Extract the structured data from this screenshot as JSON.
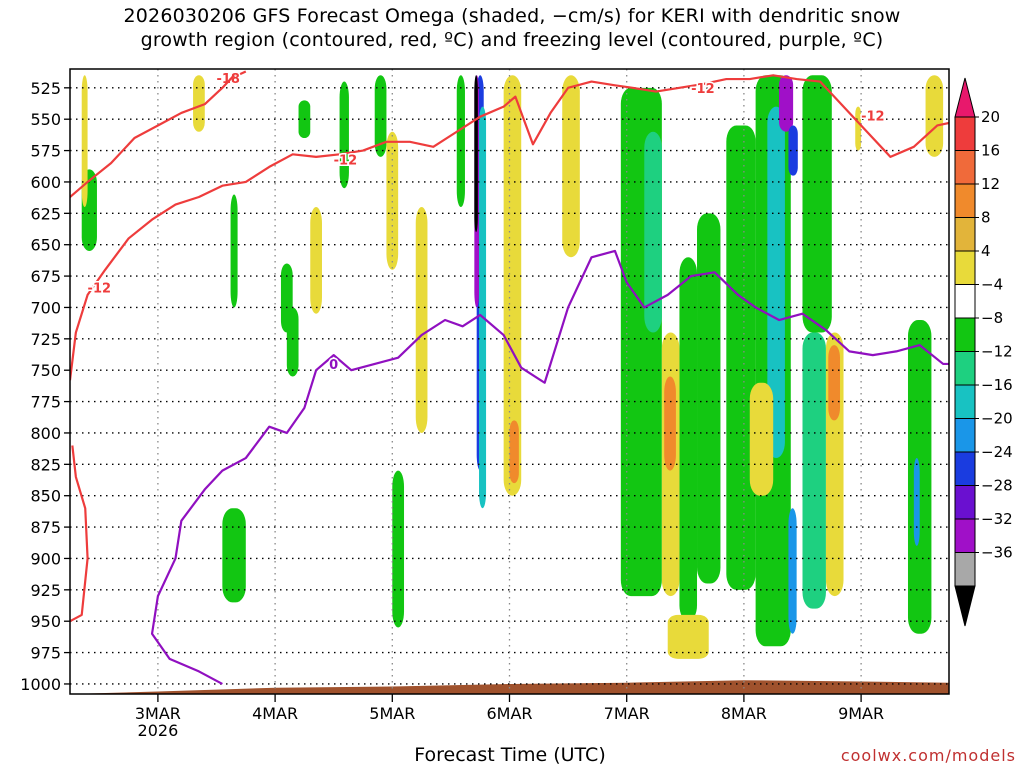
{
  "title": {
    "line1": "2026030206 GFS Forecast Omega (shaded, −cm/s) for KERI with dendritic snow",
    "line2": "growth region (contoured, red, ºC) and freezing level (contoured, purple, ºC)"
  },
  "chart_data": {
    "type": "heatmap",
    "title": "2026030206 GFS Forecast Omega (shaded, −cm/s) for KERI with dendritic snow growth region (contoured, red, ºC) and freezing level (contoured, purple, ºC)",
    "xlabel": "Forecast Time (UTC)",
    "ylabel": "",
    "x_range_days": [
      2.25,
      9.75
    ],
    "x_ticks": [
      {
        "day": 3,
        "label": "3MAR",
        "sublabel": "2026"
      },
      {
        "day": 4,
        "label": "4MAR",
        "sublabel": ""
      },
      {
        "day": 5,
        "label": "5MAR",
        "sublabel": ""
      },
      {
        "day": 6,
        "label": "6MAR",
        "sublabel": ""
      },
      {
        "day": 7,
        "label": "7MAR",
        "sublabel": ""
      },
      {
        "day": 8,
        "label": "8MAR",
        "sublabel": ""
      },
      {
        "day": 9,
        "label": "9MAR",
        "sublabel": ""
      }
    ],
    "y_range_hpa": [
      1008,
      510
    ],
    "y_ticks": [
      525,
      550,
      575,
      600,
      625,
      650,
      675,
      700,
      725,
      750,
      775,
      800,
      825,
      850,
      875,
      900,
      925,
      950,
      975,
      1000
    ],
    "colorbar": {
      "labels": [
        "20",
        "16",
        "12",
        "8",
        "4",
        "−4",
        "−8",
        "−12",
        "−16",
        "−20",
        "−24",
        "−28",
        "−32",
        "−36"
      ],
      "bins": [
        {
          "min": 20,
          "max": 24,
          "color": "#e8186c"
        },
        {
          "min": 16,
          "max": 20,
          "color": "#ee3c3c"
        },
        {
          "min": 12,
          "max": 16,
          "color": "#f06a3a"
        },
        {
          "min": 8,
          "max": 12,
          "color": "#f08a2c"
        },
        {
          "min": 4,
          "max": 8,
          "color": "#e2b43a"
        },
        {
          "min": 4,
          "max": 4,
          "color": "#e8da3a"
        },
        {
          "min": -4,
          "max": 4,
          "color": "#ffffff"
        },
        {
          "min": -8,
          "max": -4,
          "color": "#12c612"
        },
        {
          "min": -12,
          "max": -8,
          "color": "#1ed080"
        },
        {
          "min": -16,
          "max": -12,
          "color": "#18c2c2"
        },
        {
          "min": -20,
          "max": -16,
          "color": "#1a96e8"
        },
        {
          "min": -24,
          "max": -20,
          "color": "#1a3ce0"
        },
        {
          "min": -28,
          "max": -24,
          "color": "#6a10d0"
        },
        {
          "min": -32,
          "max": -28,
          "color": "#a010c8"
        },
        {
          "min": -36,
          "max": -32,
          "color": "#a8a8a8"
        }
      ],
      "under_color": "#000000",
      "over_color": "#e8186c"
    },
    "omega_patches": [
      {
        "color": "#12c612",
        "x": [
          2.35,
          2.48
        ],
        "p": [
          590,
          655
        ]
      },
      {
        "color": "#12c612",
        "x": [
          3.55,
          3.75
        ],
        "p": [
          860,
          935
        ]
      },
      {
        "color": "#12c612",
        "x": [
          3.62,
          3.68
        ],
        "p": [
          610,
          700
        ]
      },
      {
        "color": "#12c612",
        "x": [
          4.05,
          4.15
        ],
        "p": [
          665,
          720
        ]
      },
      {
        "color": "#12c612",
        "x": [
          4.1,
          4.2
        ],
        "p": [
          700,
          755
        ]
      },
      {
        "color": "#12c612",
        "x": [
          4.2,
          4.3
        ],
        "p": [
          535,
          565
        ]
      },
      {
        "color": "#12c612",
        "x": [
          4.55,
          4.63
        ],
        "p": [
          520,
          605
        ]
      },
      {
        "color": "#12c612",
        "x": [
          4.85,
          4.95
        ],
        "p": [
          515,
          580
        ]
      },
      {
        "color": "#12c612",
        "x": [
          5.0,
          5.1
        ],
        "p": [
          830,
          955
        ]
      },
      {
        "color": "#12c612",
        "x": [
          5.55,
          5.62
        ],
        "p": [
          515,
          620
        ]
      },
      {
        "color": "#12c612",
        "x": [
          6.95,
          7.3
        ],
        "p": [
          525,
          930
        ]
      },
      {
        "color": "#1ed080",
        "x": [
          7.15,
          7.3
        ],
        "p": [
          560,
          720
        ]
      },
      {
        "color": "#12c612",
        "x": [
          7.45,
          7.6
        ],
        "p": [
          660,
          950
        ]
      },
      {
        "color": "#12c612",
        "x": [
          7.6,
          7.8
        ],
        "p": [
          625,
          920
        ]
      },
      {
        "color": "#12c612",
        "x": [
          7.85,
          8.1
        ],
        "p": [
          555,
          925
        ]
      },
      {
        "color": "#12c612",
        "x": [
          8.1,
          8.4
        ],
        "p": [
          515,
          970
        ]
      },
      {
        "color": "#18c2c2",
        "x": [
          8.2,
          8.35
        ],
        "p": [
          540,
          820
        ]
      },
      {
        "color": "#1a96e8",
        "x": [
          8.38,
          8.45
        ],
        "p": [
          860,
          960
        ]
      },
      {
        "color": "#12c612",
        "x": [
          8.5,
          8.75
        ],
        "p": [
          515,
          720
        ]
      },
      {
        "color": "#1ed080",
        "x": [
          8.5,
          8.7
        ],
        "p": [
          720,
          940
        ]
      },
      {
        "color": "#12c612",
        "x": [
          9.4,
          9.6
        ],
        "p": [
          710,
          960
        ]
      },
      {
        "color": "#1a96e8",
        "x": [
          9.45,
          9.5
        ],
        "p": [
          820,
          890
        ]
      },
      {
        "color": "#a010c8",
        "x": [
          8.3,
          8.42
        ],
        "p": [
          515,
          560
        ]
      },
      {
        "color": "#1a3ce0",
        "x": [
          8.38,
          8.46
        ],
        "p": [
          555,
          595
        ]
      },
      {
        "color": "#1a3ce0",
        "x": [
          5.72,
          5.78
        ],
        "p": [
          515,
          830
        ]
      },
      {
        "color": "#a010c8",
        "x": [
          5.7,
          5.74
        ],
        "p": [
          515,
          700
        ]
      },
      {
        "color": "#000000",
        "x": [
          5.7,
          5.73
        ],
        "p": [
          515,
          640
        ]
      },
      {
        "color": "#18c2c2",
        "x": [
          5.74,
          5.8
        ],
        "p": [
          540,
          860
        ]
      },
      {
        "color": "#e8da3a",
        "x": [
          3.3,
          3.4
        ],
        "p": [
          515,
          560
        ]
      },
      {
        "color": "#e8da3a",
        "x": [
          4.3,
          4.4
        ],
        "p": [
          620,
          705
        ]
      },
      {
        "color": "#e8da3a",
        "x": [
          4.95,
          5.05
        ],
        "p": [
          560,
          670
        ]
      },
      {
        "color": "#e8da3a",
        "x": [
          5.2,
          5.3
        ],
        "p": [
          620,
          800
        ]
      },
      {
        "color": "#e8da3a",
        "x": [
          5.95,
          6.1
        ],
        "p": [
          515,
          850
        ]
      },
      {
        "color": "#f08a2c",
        "x": [
          6.0,
          6.08
        ],
        "p": [
          790,
          840
        ]
      },
      {
        "color": "#e8da3a",
        "x": [
          6.45,
          6.6
        ],
        "p": [
          515,
          660
        ]
      },
      {
        "color": "#e8da3a",
        "x": [
          7.3,
          7.45
        ],
        "p": [
          720,
          930
        ]
      },
      {
        "color": "#f08a2c",
        "x": [
          7.32,
          7.42
        ],
        "p": [
          755,
          830
        ]
      },
      {
        "color": "#e8da3a",
        "x": [
          7.35,
          7.7
        ],
        "p": [
          945,
          980
        ]
      },
      {
        "color": "#e8da3a",
        "x": [
          8.05,
          8.25
        ],
        "p": [
          760,
          850
        ]
      },
      {
        "color": "#e8da3a",
        "x": [
          8.7,
          8.85
        ],
        "p": [
          720,
          930
        ]
      },
      {
        "color": "#f08a2c",
        "x": [
          8.72,
          8.82
        ],
        "p": [
          730,
          790
        ]
      },
      {
        "color": "#e8da3a",
        "x": [
          9.55,
          9.7
        ],
        "p": [
          515,
          580
        ]
      },
      {
        "color": "#e8da3a",
        "x": [
          8.95,
          9.0
        ],
        "p": [
          540,
          575
        ]
      },
      {
        "color": "#e8da3a",
        "x": [
          2.35,
          2.4
        ],
        "p": [
          515,
          620
        ]
      }
    ],
    "dendritic_growth_contours": [
      {
        "value": -18,
        "label": "-18",
        "label_at": [
          3.6,
          517
        ],
        "points": [
          [
            3.6,
            519
          ],
          [
            3.68,
            515
          ],
          [
            3.75,
            512
          ]
        ]
      },
      {
        "value": -12,
        "label": "-12",
        "label_at": [
          2.5,
          684
        ],
        "points": [
          [
            2.25,
            758
          ],
          [
            2.3,
            720
          ],
          [
            2.4,
            690
          ],
          [
            2.55,
            670
          ],
          [
            2.75,
            645
          ],
          [
            2.95,
            630
          ],
          [
            3.15,
            618
          ],
          [
            3.35,
            612
          ],
          [
            3.55,
            603
          ],
          [
            3.75,
            600
          ],
          [
            3.95,
            588
          ],
          [
            4.15,
            578
          ],
          [
            4.35,
            580
          ],
          [
            4.55,
            578
          ],
          [
            4.75,
            575
          ],
          [
            4.95,
            568
          ],
          [
            5.15,
            568
          ],
          [
            5.35,
            572
          ],
          [
            5.55,
            560
          ],
          [
            5.75,
            548
          ],
          [
            5.95,
            540
          ],
          [
            6.05,
            532
          ],
          [
            6.2,
            570
          ],
          [
            6.35,
            545
          ],
          [
            6.5,
            525
          ],
          [
            6.7,
            520
          ],
          [
            6.9,
            523
          ],
          [
            7.05,
            525
          ],
          [
            7.25,
            528
          ],
          [
            7.45,
            525
          ],
          [
            7.65,
            522
          ],
          [
            7.85,
            518
          ],
          [
            8.05,
            518
          ],
          [
            8.25,
            515
          ],
          [
            8.45,
            518
          ],
          [
            8.65,
            520
          ],
          [
            8.85,
            540
          ],
          [
            9.05,
            560
          ],
          [
            9.25,
            580
          ],
          [
            9.45,
            572
          ],
          [
            9.65,
            555
          ],
          [
            9.75,
            553
          ]
        ]
      },
      {
        "value": -12,
        "label": "-12",
        "label_at": [
          4.6,
          582
        ],
        "points": [
          [
            2.25,
            612
          ],
          [
            2.4,
            600
          ],
          [
            2.6,
            585
          ],
          [
            2.8,
            565
          ],
          [
            3.0,
            555
          ],
          [
            3.2,
            545
          ],
          [
            3.4,
            538
          ],
          [
            3.55,
            525
          ],
          [
            3.65,
            515
          ]
        ]
      },
      {
        "value": -12,
        "label": "-12",
        "label_at": [
          7.65,
          525
        ],
        "points": []
      },
      {
        "value": -12,
        "label": "-12",
        "label_at": [
          9.1,
          547
        ],
        "points": []
      },
      {
        "value": -12,
        "label": "",
        "label_at": [
          2.3,
          900
        ],
        "points": [
          [
            2.25,
            950
          ],
          [
            2.35,
            945
          ],
          [
            2.4,
            900
          ],
          [
            2.38,
            860
          ],
          [
            2.3,
            835
          ],
          [
            2.27,
            810
          ]
        ]
      }
    ],
    "freezing_level_contours": [
      {
        "value": 0,
        "label": "0",
        "label_at": [
          4.5,
          745
        ],
        "points": [
          [
            3.55,
            1000
          ],
          [
            3.35,
            990
          ],
          [
            3.1,
            980
          ],
          [
            2.95,
            960
          ],
          [
            3.0,
            930
          ],
          [
            3.15,
            900
          ],
          [
            3.2,
            870
          ],
          [
            3.4,
            845
          ],
          [
            3.55,
            830
          ],
          [
            3.75,
            820
          ],
          [
            3.95,
            795
          ],
          [
            4.1,
            800
          ],
          [
            4.25,
            780
          ],
          [
            4.35,
            750
          ],
          [
            4.5,
            738
          ],
          [
            4.65,
            750
          ],
          [
            4.85,
            745
          ],
          [
            5.05,
            740
          ],
          [
            5.25,
            722
          ],
          [
            5.45,
            710
          ],
          [
            5.6,
            715
          ],
          [
            5.75,
            706
          ],
          [
            5.95,
            722
          ],
          [
            6.1,
            748
          ],
          [
            6.3,
            760
          ],
          [
            6.5,
            700
          ],
          [
            6.7,
            660
          ],
          [
            6.9,
            655
          ],
          [
            7.0,
            680
          ],
          [
            7.15,
            700
          ],
          [
            7.35,
            690
          ],
          [
            7.55,
            675
          ],
          [
            7.75,
            672
          ],
          [
            7.95,
            690
          ],
          [
            8.1,
            700
          ],
          [
            8.3,
            710
          ],
          [
            8.5,
            705
          ],
          [
            8.7,
            718
          ],
          [
            8.9,
            735
          ],
          [
            9.1,
            738
          ],
          [
            9.3,
            735
          ],
          [
            9.5,
            730
          ],
          [
            9.7,
            745
          ],
          [
            9.75,
            745
          ]
        ]
      }
    ],
    "ground_color": "#a0522d",
    "ground_top_hpa": [
      [
        2.25,
        1008
      ],
      [
        3.0,
        1006
      ],
      [
        4.0,
        1003
      ],
      [
        5.0,
        1002
      ],
      [
        6.0,
        1000
      ],
      [
        7.0,
        999
      ],
      [
        8.0,
        997
      ],
      [
        9.0,
        998
      ],
      [
        9.75,
        999
      ]
    ]
  },
  "x_axis_title": "Forecast Time (UTC)",
  "credit": "coolwx.com/models"
}
